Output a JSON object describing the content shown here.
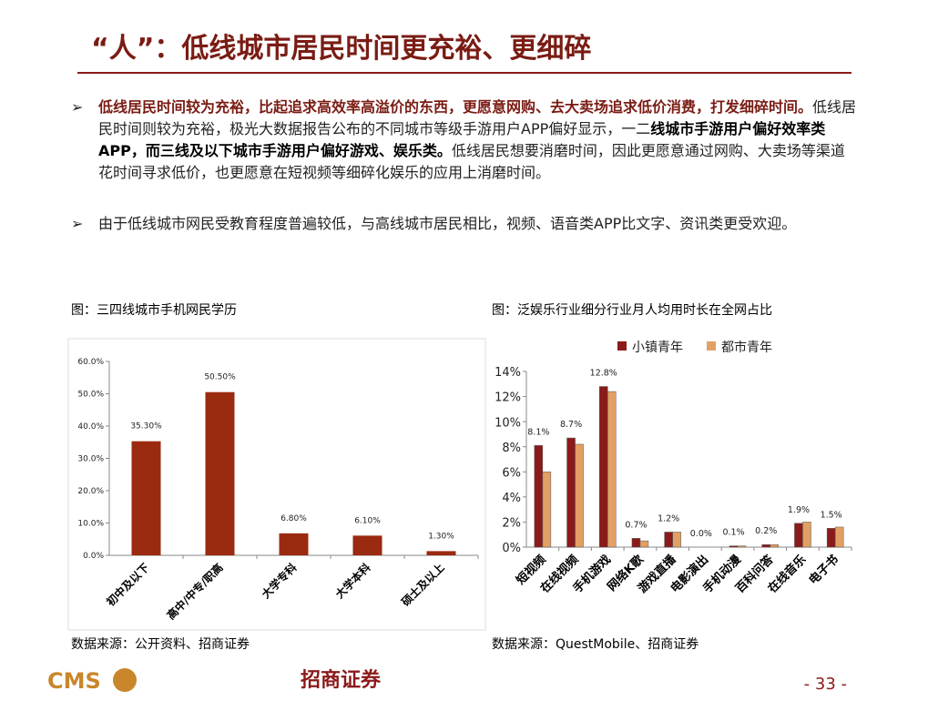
{
  "header": {
    "title": "“人”：低线城市居民时间更充裕、更细碎"
  },
  "bullets": [
    [
      "低线居民时间较为充裕，比起追求高效率高溢价的东西，更愿意网购、去大卖场追求低价消费，打发细碎时间。",
      "低线居民时间则较为充裕，极光大数据报告公布的不同城市等级手游用户APP偏好显示，一二",
      "线城市手游用户偏好效率类APP，而三线及以下城市手游用户偏好游戏、娱乐类。",
      "低线居民想要消磨时间，因此更愿意通过网购、大卖场等渠道花时间寻求低价，也更愿意在短视频等细碎化娱乐的应用上消磨时间。"
    ],
    [
      "由于低线城市网民受教育程度普遍较低，与高线城市居民相比，视频、语音类APP比文字、资讯类更受欢迎。"
    ]
  ],
  "chart_data": [
    {
      "type": "bar",
      "title": "图：三四线城市手机网民学历",
      "source": "数据来源：公开资料、招商证券",
      "categories": [
        "初中及以下",
        "高中/中专/职高",
        "大学专科",
        "大学本科",
        "硕士及以上"
      ],
      "series": [
        {
          "name": null,
          "color": "#9a2a10",
          "values": [
            35.3,
            50.5,
            6.8,
            6.1,
            1.3
          ],
          "value_labels": [
            "35.30%",
            "50.50%",
            "6.80%",
            "6.10%",
            "1.30%"
          ]
        }
      ],
      "ylim": [
        0,
        60
      ],
      "yticks": [
        {
          "value": 0,
          "label": "0.0%"
        },
        {
          "value": 10,
          "label": "10.0%"
        },
        {
          "value": 20,
          "label": "20.0%"
        },
        {
          "value": 30,
          "label": "30.0%"
        },
        {
          "value": 40,
          "label": "40.0%"
        },
        {
          "value": 50,
          "label": "50.0%"
        },
        {
          "value": 60,
          "label": "60.0%"
        }
      ],
      "grid": false
    },
    {
      "type": "bar",
      "title": "图：泛娱乐行业细分行业月人均用时长在全网占比",
      "source": "数据来源：QuestMobile、招商证券",
      "categories": [
        "短视频",
        "在线视频",
        "手机游戏",
        "网络K歌",
        "游戏直播",
        "电影演出",
        "手机动漫",
        "百科问答",
        "在线音乐",
        "电子书"
      ],
      "series": [
        {
          "name": "小镇青年",
          "color": "#8b1a1a",
          "values": [
            8.1,
            8.7,
            12.8,
            0.7,
            1.2,
            0.0,
            0.1,
            0.2,
            1.9,
            1.5
          ],
          "value_labels": [
            "8.1%",
            "8.7%",
            "12.8%",
            "0.7%",
            "1.2%",
            "0.0%",
            "0.1%",
            "0.2%",
            "1.9%",
            "1.5%"
          ]
        },
        {
          "name": "都市青年",
          "color": "#e2a064",
          "values": [
            6.0,
            8.2,
            12.4,
            0.5,
            1.2,
            0.0,
            0.1,
            0.2,
            2.0,
            1.6
          ]
        }
      ],
      "ylim": [
        0,
        14
      ],
      "yticks": [
        {
          "value": 0,
          "label": "0%"
        },
        {
          "value": 2,
          "label": "2%"
        },
        {
          "value": 4,
          "label": "4%"
        },
        {
          "value": 6,
          "label": "6%"
        },
        {
          "value": 8,
          "label": "8%"
        },
        {
          "value": 10,
          "label": "10%"
        },
        {
          "value": 12,
          "label": "12%"
        },
        {
          "value": 14,
          "label": "14%"
        }
      ],
      "grid": false
    }
  ],
  "footer": {
    "logo": "CMS",
    "company": "招商证券",
    "page_number": "- 33 -"
  }
}
